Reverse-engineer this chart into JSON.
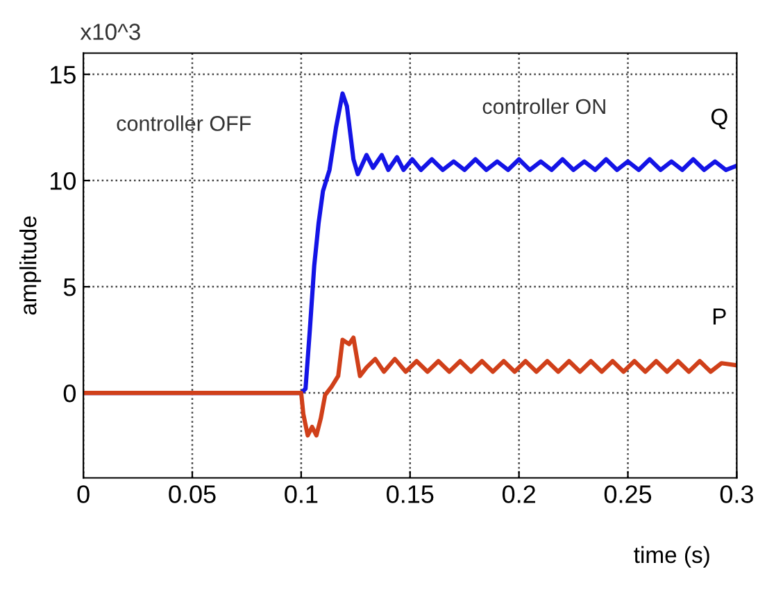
{
  "chart_data": {
    "type": "line",
    "xlabel": "time (s)",
    "ylabel": "amplitude",
    "annotations": [
      "x10^3",
      "controller OFF",
      "controller ON"
    ],
    "xlim": [
      0,
      0.3
    ],
    "ylim": [
      -4,
      16
    ],
    "xticks": [
      0,
      0.05,
      0.1,
      0.15,
      0.2,
      0.25,
      0.3
    ],
    "yticks": [
      0,
      5,
      10,
      15
    ],
    "grid": true,
    "legend": false,
    "line_style": "solid",
    "marker": "none",
    "series": [
      {
        "name": "Q",
        "color": "#1414e6",
        "x": [
          0,
          0.1,
          0.102,
          0.104,
          0.106,
          0.108,
          0.11,
          0.113,
          0.116,
          0.119,
          0.121,
          0.124,
          0.126,
          0.13,
          0.133,
          0.137,
          0.14,
          0.144,
          0.147,
          0.151,
          0.155,
          0.16,
          0.165,
          0.17,
          0.175,
          0.18,
          0.185,
          0.19,
          0.195,
          0.2,
          0.205,
          0.21,
          0.215,
          0.22,
          0.225,
          0.23,
          0.235,
          0.24,
          0.245,
          0.25,
          0.255,
          0.26,
          0.265,
          0.27,
          0.275,
          0.28,
          0.285,
          0.29,
          0.295,
          0.3
        ],
        "values": [
          0,
          0,
          0.2,
          3,
          6,
          8,
          9.5,
          10.5,
          12.5,
          14.1,
          13.5,
          11,
          10.3,
          11.2,
          10.6,
          11.2,
          10.5,
          11.1,
          10.5,
          11,
          10.5,
          11,
          10.5,
          10.9,
          10.5,
          11,
          10.5,
          10.9,
          10.5,
          11,
          10.5,
          10.9,
          10.5,
          11,
          10.5,
          10.9,
          10.5,
          11,
          10.5,
          10.9,
          10.5,
          11,
          10.5,
          10.9,
          10.5,
          11,
          10.5,
          10.9,
          10.5,
          10.7
        ]
      },
      {
        "name": "P",
        "color": "#d0401a",
        "x": [
          0,
          0.1,
          0.101,
          0.103,
          0.105,
          0.107,
          0.109,
          0.111,
          0.114,
          0.117,
          0.119,
          0.122,
          0.124,
          0.127,
          0.13,
          0.134,
          0.138,
          0.143,
          0.148,
          0.153,
          0.158,
          0.163,
          0.168,
          0.173,
          0.178,
          0.183,
          0.188,
          0.193,
          0.198,
          0.203,
          0.208,
          0.213,
          0.218,
          0.223,
          0.228,
          0.233,
          0.238,
          0.243,
          0.248,
          0.253,
          0.258,
          0.263,
          0.268,
          0.273,
          0.278,
          0.283,
          0.288,
          0.293,
          0.3
        ],
        "values": [
          0,
          0,
          -1,
          -2,
          -1.6,
          -2,
          -1.2,
          -0.1,
          0.3,
          0.8,
          2.5,
          2.3,
          2.6,
          0.8,
          1.2,
          1.6,
          1,
          1.6,
          1,
          1.5,
          1,
          1.5,
          1,
          1.5,
          1,
          1.5,
          1,
          1.5,
          1,
          1.5,
          1,
          1.5,
          1,
          1.5,
          1,
          1.5,
          1,
          1.5,
          1,
          1.5,
          1,
          1.5,
          1,
          1.5,
          1,
          1.5,
          1,
          1.4,
          1.3
        ]
      }
    ]
  }
}
